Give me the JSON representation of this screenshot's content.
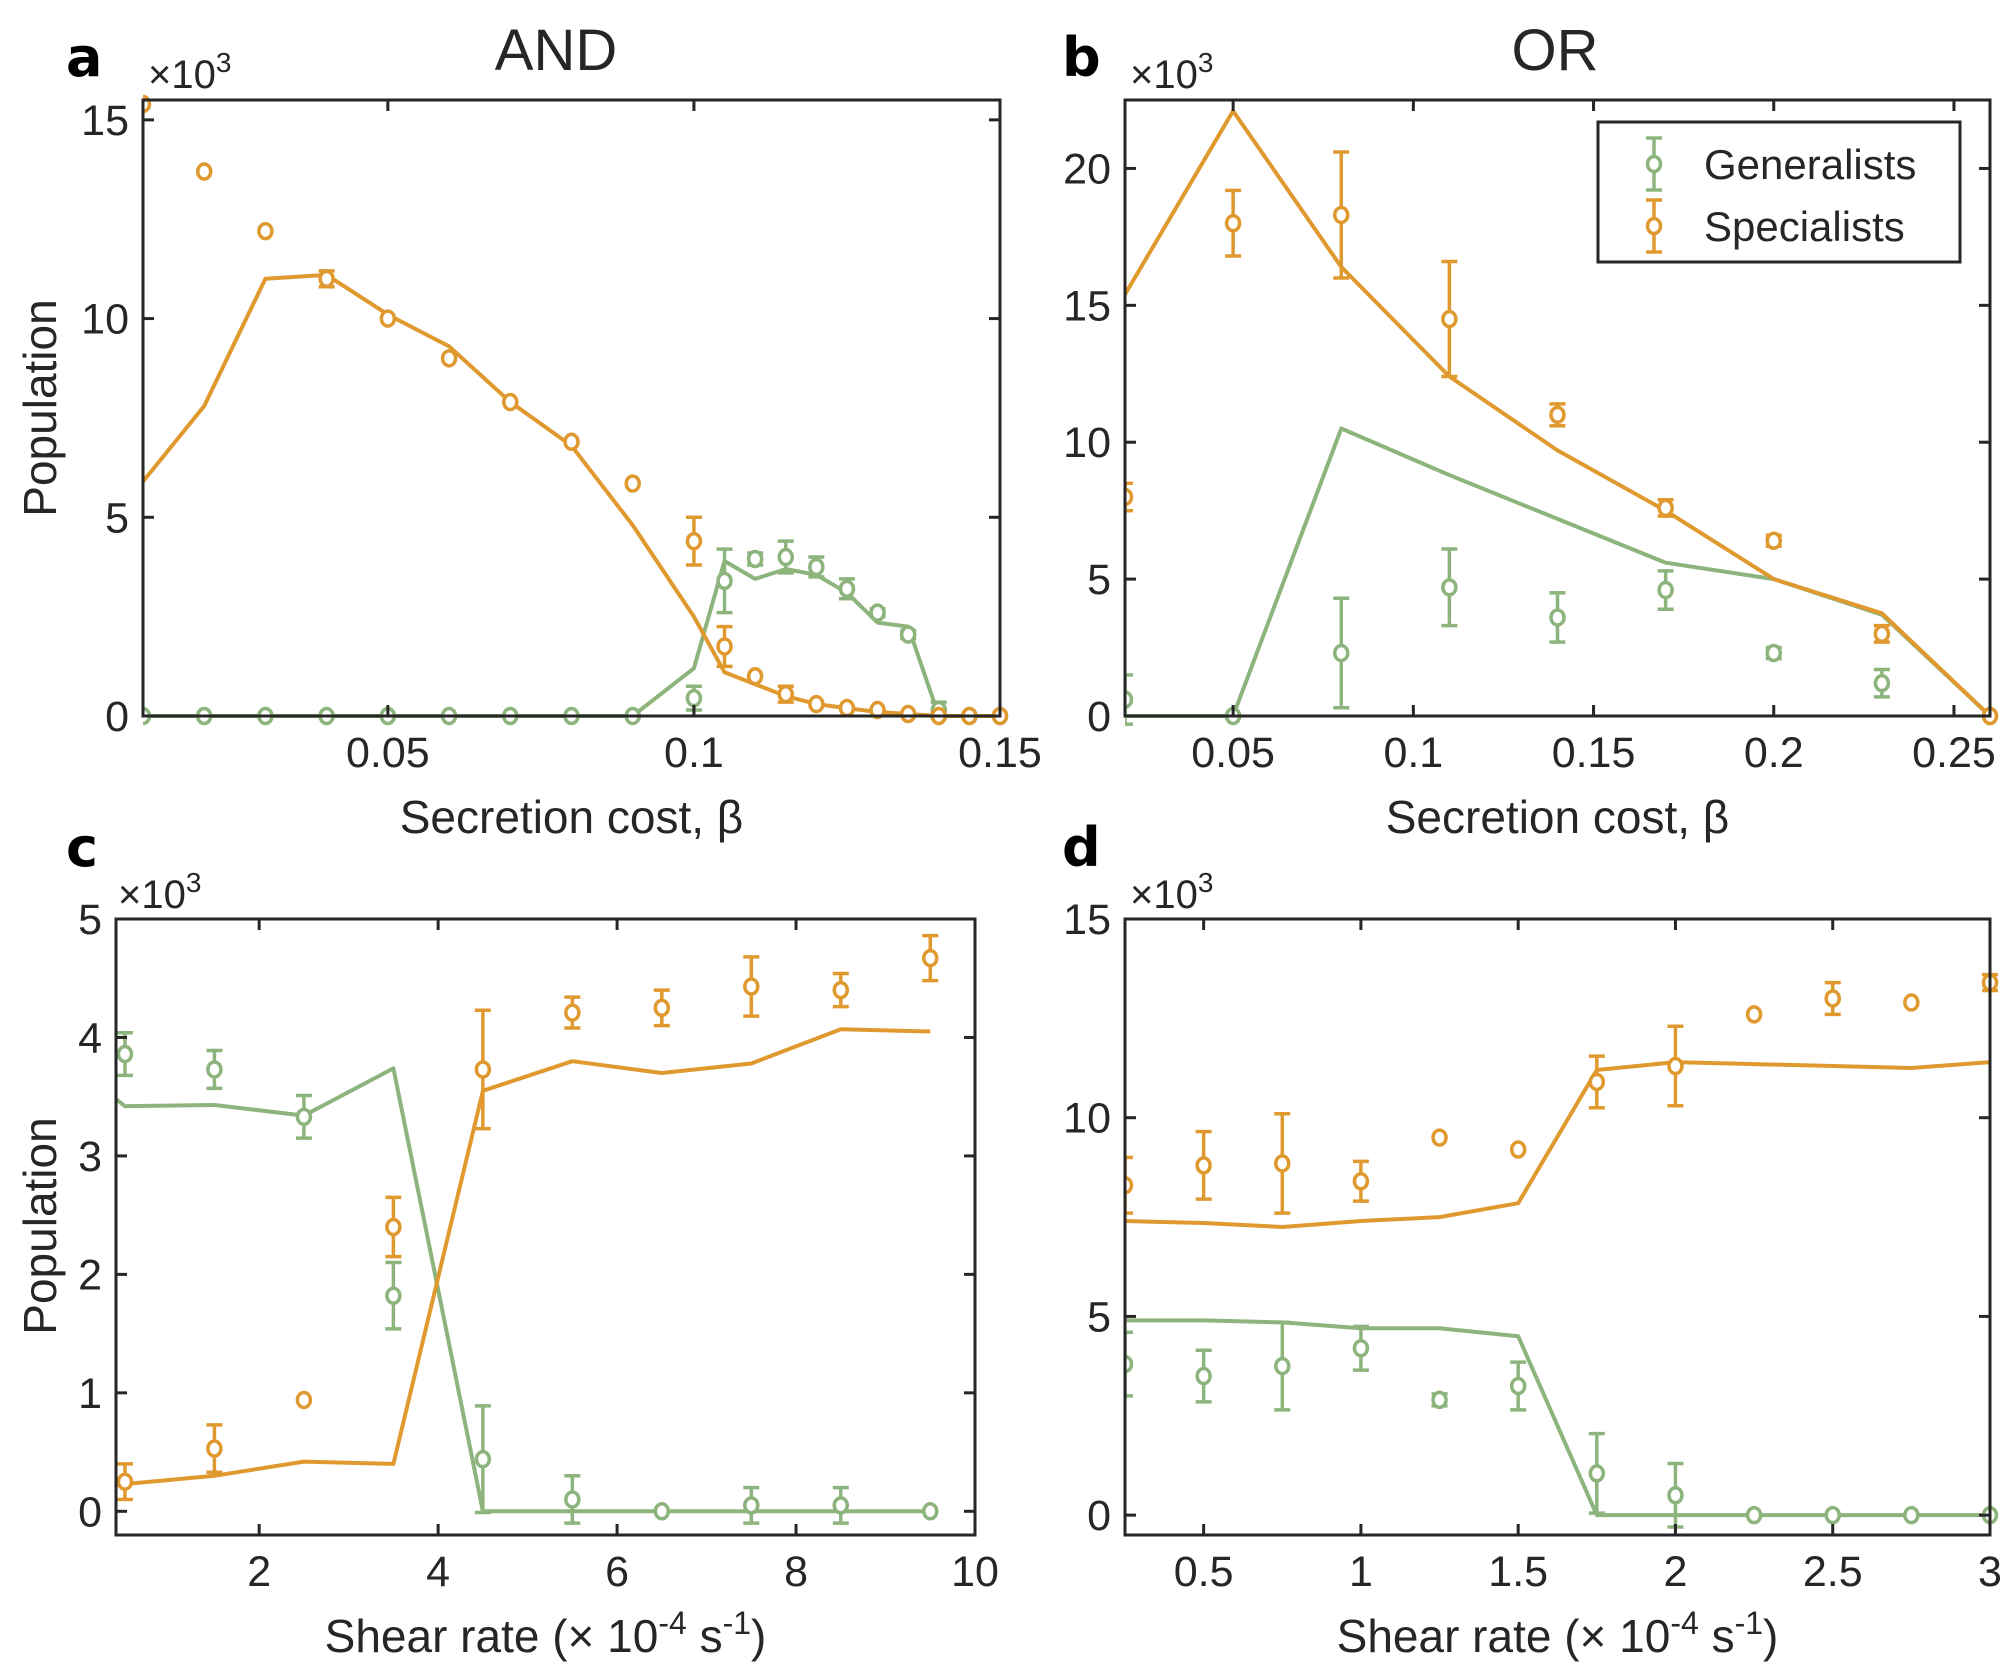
{
  "figure": {
    "series_names": [
      "Generalists",
      "Specialists"
    ],
    "colors": {
      "generalists": "#8db47d",
      "specialists": "#e0992e",
      "axis": "#262626"
    },
    "multiplier": "×10",
    "multiplier_exp": "3"
  },
  "chart_data": [
    {
      "panel": "a",
      "type": "line",
      "title": "AND",
      "xlabel": "Secretion cost, β",
      "ylabel": "Population",
      "xlim": [
        0.01,
        0.15
      ],
      "ylim": [
        0,
        15.5
      ],
      "xticks": [
        0.05,
        0.1,
        0.15
      ],
      "xtick_labels": [
        "0.05",
        "0.1",
        "0.15"
      ],
      "yticks": [
        0,
        5,
        10,
        15
      ],
      "ytick_labels": [
        "0",
        "5",
        "10",
        "15"
      ],
      "y_multiplier": "×10^3",
      "line_series": [
        {
          "name": "Generalists",
          "x": [
            0.01,
            0.02,
            0.03,
            0.04,
            0.05,
            0.06,
            0.07,
            0.08,
            0.09,
            0.1,
            0.105,
            0.11,
            0.115,
            0.12,
            0.125,
            0.13,
            0.135,
            0.14
          ],
          "y": [
            0,
            0,
            0,
            0,
            0,
            0,
            0,
            0,
            0,
            1.2,
            3.9,
            3.45,
            3.7,
            3.55,
            3.1,
            2.35,
            2.25,
            0
          ]
        },
        {
          "name": "Specialists",
          "x": [
            0.01,
            0.02,
            0.03,
            0.04,
            0.05,
            0.06,
            0.07,
            0.08,
            0.09,
            0.1,
            0.105,
            0.11,
            0.115,
            0.12,
            0.125,
            0.13,
            0.135,
            0.14,
            0.145,
            0.15
          ],
          "y": [
            5.9,
            7.8,
            11.0,
            11.1,
            10.1,
            9.3,
            7.9,
            6.8,
            4.8,
            2.5,
            1.1,
            0.8,
            0.5,
            0.3,
            0.2,
            0.1,
            0.05,
            0,
            0,
            0
          ]
        }
      ],
      "point_series": [
        {
          "name": "Generalists",
          "x": [
            0.01,
            0.02,
            0.03,
            0.04,
            0.05,
            0.06,
            0.07,
            0.08,
            0.09,
            0.1,
            0.105,
            0.11,
            0.115,
            0.12,
            0.125,
            0.13,
            0.135,
            0.14,
            0.145,
            0.15
          ],
          "y": [
            0,
            0,
            0,
            0,
            0,
            0,
            0,
            0,
            0,
            0.45,
            3.4,
            3.95,
            4.0,
            3.75,
            3.2,
            2.6,
            2.05,
            0.15,
            0,
            0
          ],
          "err": [
            0,
            0,
            0,
            0,
            0,
            0,
            0,
            0,
            0,
            0.3,
            0.8,
            0.15,
            0.4,
            0.25,
            0.25,
            0.1,
            0.1,
            0.2,
            0,
            0
          ]
        },
        {
          "name": "Specialists",
          "x": [
            0.01,
            0.02,
            0.03,
            0.04,
            0.05,
            0.06,
            0.07,
            0.08,
            0.09,
            0.1,
            0.105,
            0.11,
            0.115,
            0.12,
            0.125,
            0.13,
            0.135,
            0.14,
            0.145,
            0.15
          ],
          "y": [
            15.4,
            13.7,
            12.2,
            11.0,
            10.0,
            9.0,
            7.9,
            6.9,
            5.85,
            4.4,
            1.75,
            1.0,
            0.55,
            0.3,
            0.2,
            0.15,
            0.05,
            0,
            0,
            0
          ],
          "err": [
            0,
            0,
            0,
            0.2,
            0,
            0,
            0,
            0,
            0,
            0.6,
            0.5,
            0,
            0.2,
            0,
            0,
            0,
            0,
            0,
            0,
            0
          ]
        }
      ]
    },
    {
      "panel": "b",
      "type": "line",
      "title": "OR",
      "xlabel": "Secretion cost, β",
      "ylabel": "",
      "xlim": [
        0.02,
        0.26
      ],
      "ylim": [
        0,
        22.5
      ],
      "xticks": [
        0.05,
        0.1,
        0.15,
        0.2,
        0.25
      ],
      "xtick_labels": [
        "0.05",
        "0.1",
        "0.15",
        "0.2",
        "0.25"
      ],
      "yticks": [
        0,
        5,
        10,
        15,
        20
      ],
      "ytick_labels": [
        "0",
        "5",
        "10",
        "15",
        "20"
      ],
      "y_multiplier": "×10^3",
      "legend": {
        "position": "top-right",
        "entries": [
          "Generalists",
          "Specialists"
        ]
      },
      "line_series": [
        {
          "name": "Generalists",
          "x": [
            0.02,
            0.05,
            0.08,
            0.11,
            0.14,
            0.17,
            0.2,
            0.23,
            0.26
          ],
          "y": [
            0,
            0,
            10.5,
            8.8,
            7.2,
            5.6,
            5.0,
            3.7,
            0
          ]
        },
        {
          "name": "Specialists",
          "x": [
            0.02,
            0.05,
            0.08,
            0.11,
            0.14,
            0.17,
            0.2,
            0.23,
            0.26
          ],
          "y": [
            15.4,
            22.1,
            16.4,
            12.4,
            9.7,
            7.5,
            5.0,
            3.75,
            0
          ]
        }
      ],
      "point_series": [
        {
          "name": "Generalists",
          "x": [
            0.02,
            0.05,
            0.08,
            0.11,
            0.14,
            0.17,
            0.2,
            0.23,
            0.26
          ],
          "y": [
            0.6,
            0,
            2.3,
            4.7,
            3.6,
            4.6,
            2.3,
            1.2,
            0
          ],
          "err": [
            0.9,
            0,
            2.0,
            1.4,
            0.9,
            0.7,
            0.2,
            0.5,
            0
          ]
        },
        {
          "name": "Specialists",
          "x": [
            0.02,
            0.05,
            0.08,
            0.11,
            0.14,
            0.17,
            0.2,
            0.23,
            0.26
          ],
          "y": [
            8.0,
            18.0,
            18.3,
            14.5,
            11.0,
            7.6,
            6.4,
            3.0,
            0
          ],
          "err": [
            0.5,
            1.2,
            2.3,
            2.1,
            0.4,
            0.3,
            0.2,
            0.3,
            0
          ]
        }
      ]
    },
    {
      "panel": "c",
      "type": "line",
      "title": "",
      "xlabel": "Shear rate (× 10",
      "xlabel_exp": "-4",
      "xlabel_unit": "s",
      "xlabel_unit_exp": "-1",
      "xlabel_close": ")",
      "ylabel": "Population",
      "xlim": [
        0.4,
        10
      ],
      "ylim": [
        -0.2,
        5
      ],
      "xticks": [
        2,
        4,
        6,
        8,
        10
      ],
      "xtick_labels": [
        "2",
        "4",
        "6",
        "8",
        "10"
      ],
      "yticks": [
        0,
        1,
        2,
        3,
        4,
        5
      ],
      "ytick_labels": [
        "0",
        "1",
        "2",
        "3",
        "4",
        "5"
      ],
      "y_multiplier": "×10^3",
      "line_series": [
        {
          "name": "Generalists",
          "x": [
            0.4,
            0.5,
            1.5,
            2.5,
            3.5,
            4.5,
            5.5,
            6.5,
            7.5,
            8.5,
            9.5
          ],
          "y": [
            3.48,
            3.42,
            3.43,
            3.34,
            3.74,
            0,
            0,
            0,
            0,
            0,
            0
          ]
        },
        {
          "name": "Specialists",
          "x": [
            0.4,
            0.5,
            1.5,
            2.5,
            3.5,
            4.5,
            5.5,
            6.5,
            7.5,
            8.5,
            9.5
          ],
          "y": [
            0.22,
            0.23,
            0.3,
            0.42,
            0.4,
            3.55,
            3.8,
            3.7,
            3.78,
            4.07,
            4.05
          ]
        }
      ],
      "point_series": [
        {
          "name": "Generalists",
          "x": [
            0.5,
            1.5,
            2.5,
            3.5,
            4.5,
            5.5,
            6.5,
            7.5,
            8.5,
            9.5
          ],
          "y": [
            3.86,
            3.73,
            3.33,
            1.82,
            0.44,
            0.1,
            0,
            0.05,
            0.05,
            0
          ],
          "err": [
            0.18,
            0.16,
            0.18,
            0.28,
            0.45,
            0.2,
            0,
            0.15,
            0.15,
            0
          ]
        },
        {
          "name": "Specialists",
          "x": [
            0.5,
            1.5,
            2.5,
            3.5,
            4.5,
            5.5,
            6.5,
            7.5,
            8.5,
            9.5
          ],
          "y": [
            0.25,
            0.53,
            0.94,
            2.4,
            3.73,
            4.21,
            4.25,
            4.43,
            4.4,
            4.67
          ],
          "err": [
            0.15,
            0.2,
            0,
            0.25,
            0.5,
            0.13,
            0.15,
            0.25,
            0.14,
            0.19
          ]
        }
      ]
    },
    {
      "panel": "d",
      "type": "line",
      "title": "",
      "xlabel": "Shear rate (× 10",
      "xlabel_exp": "-4",
      "xlabel_unit": "s",
      "xlabel_unit_exp": "-1",
      "xlabel_close": ")",
      "ylabel": "",
      "xlim": [
        0.25,
        3
      ],
      "ylim": [
        -0.5,
        15
      ],
      "xticks": [
        0.5,
        1,
        1.5,
        2,
        2.5,
        3
      ],
      "xtick_labels": [
        "0.5",
        "1",
        "1.5",
        "2",
        "2.5",
        "3"
      ],
      "yticks": [
        0,
        5,
        10,
        15
      ],
      "ytick_labels": [
        "0",
        "5",
        "10",
        "15"
      ],
      "y_multiplier": "×10^3",
      "line_series": [
        {
          "name": "Generalists",
          "x": [
            0.25,
            0.5,
            0.75,
            1.0,
            1.25,
            1.5,
            1.75,
            2.0,
            2.25,
            2.5,
            2.75,
            3.0
          ],
          "y": [
            4.9,
            4.9,
            4.85,
            4.7,
            4.7,
            4.5,
            0,
            0,
            0,
            0,
            0,
            0
          ]
        },
        {
          "name": "Specialists",
          "x": [
            0.25,
            0.5,
            0.75,
            1.0,
            1.25,
            1.5,
            1.75,
            2.0,
            2.25,
            2.5,
            2.75,
            3.0
          ],
          "y": [
            7.4,
            7.35,
            7.25,
            7.4,
            7.5,
            7.85,
            11.2,
            11.4,
            11.35,
            11.3,
            11.25,
            11.4
          ]
        }
      ],
      "point_series": [
        {
          "name": "Generalists",
          "x": [
            0.25,
            0.5,
            0.75,
            1.0,
            1.25,
            1.5,
            1.75,
            2.0,
            2.25,
            2.5,
            2.75,
            3.0
          ],
          "y": [
            3.8,
            3.5,
            3.75,
            4.2,
            2.9,
            3.25,
            1.05,
            0.5,
            0,
            0,
            0,
            0
          ],
          "err": [
            0.8,
            0.65,
            1.1,
            0.55,
            0.15,
            0.6,
            1.0,
            0.8,
            0,
            0,
            0,
            0
          ]
        },
        {
          "name": "Specialists",
          "x": [
            0.25,
            0.5,
            0.75,
            1.0,
            1.25,
            1.5,
            1.75,
            2.0,
            2.25,
            2.5,
            2.75,
            3.0
          ],
          "y": [
            8.3,
            8.8,
            8.85,
            8.4,
            9.5,
            9.2,
            10.9,
            11.3,
            12.6,
            13.0,
            12.9,
            13.4
          ],
          "err": [
            0.7,
            0.85,
            1.25,
            0.5,
            0,
            0,
            0.65,
            1.0,
            0,
            0.4,
            0,
            0.2
          ]
        }
      ]
    }
  ]
}
